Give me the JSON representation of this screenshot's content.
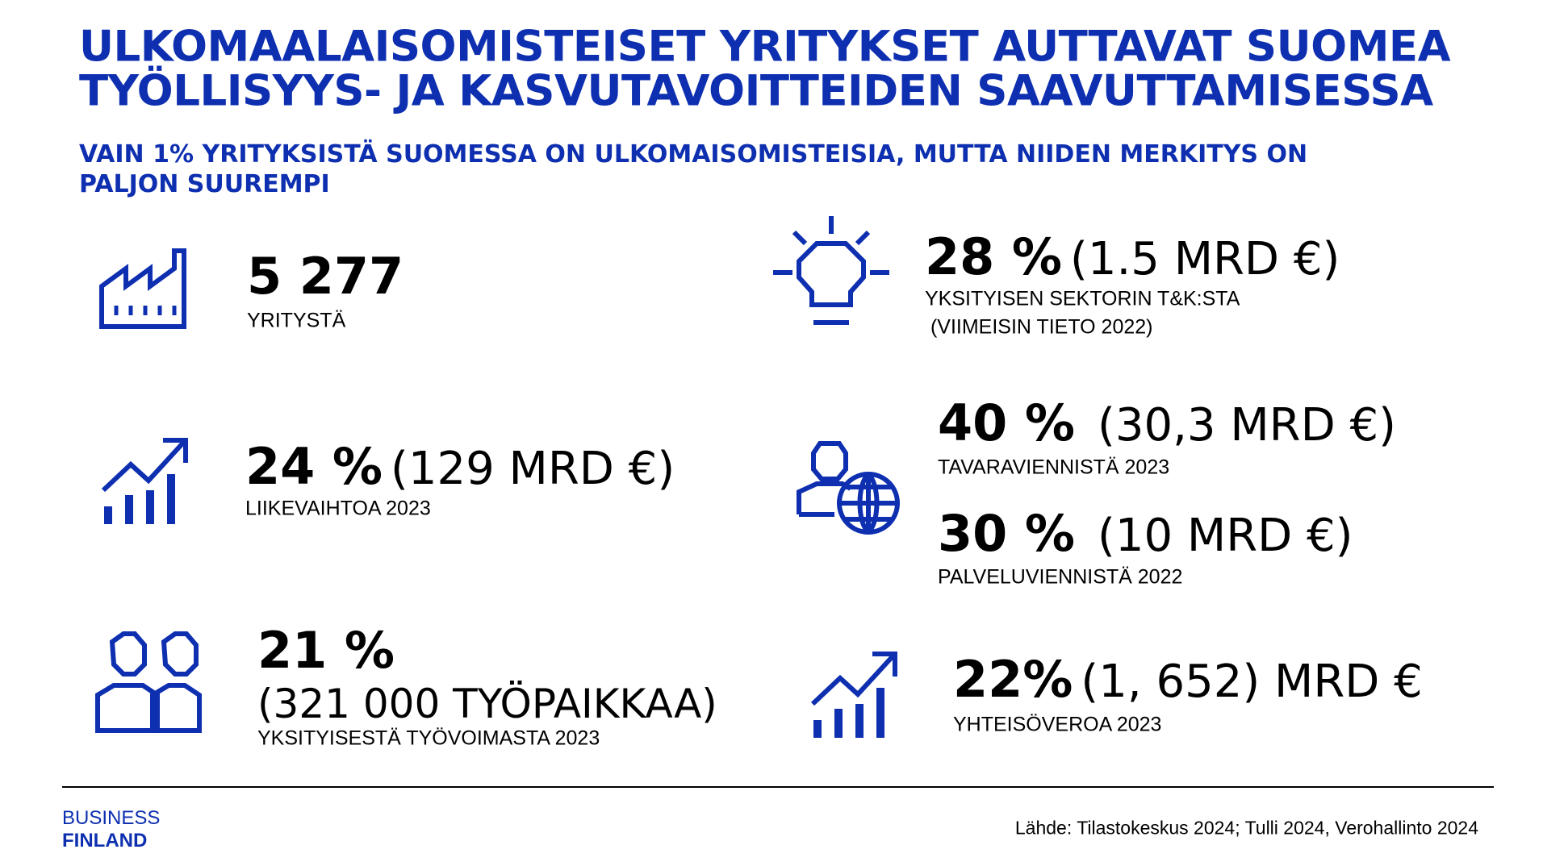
{
  "header": {
    "title": [
      "ULKOMAALAISOMISTEISET YRITYKSET AUTTAVAT SUOMEA",
      "TYÖLLISYYS- JA KASVUTAVOITTEIDEN SAAVUTTAMISESSA"
    ],
    "subtitle": [
      "VAIN 1% YRITYKSISTÄ SUOMESSA ON ULKOMAISOMISTEISIA, MUTTA NIIDEN MERKITYS ON",
      "PALJON SUUREMPI"
    ]
  },
  "stats": [
    {
      "value": "5 277",
      "label": [
        "YRITYSTÄ"
      ]
    },
    {
      "value": "28 %",
      "detail": "(1.5 MRD €)",
      "label": [
        "YKSITYISEN SEKTORIN T&K:STA",
        " (VIIMEISIN TIETO 2022)"
      ]
    },
    {
      "value": "24 %",
      "detail": "(129 MRD €)",
      "label": [
        "LIIKEVAIHTOA 2023"
      ]
    },
    {
      "value": "40 %",
      "detail": "(30,3 MRD €)",
      "label": [
        "TAVARAVIENNISTÄ 2023"
      ]
    },
    {
      "value": "30 %",
      "detail": "(10 MRD €)",
      "label": [
        "PALVELUVIENNISTÄ 2022"
      ]
    },
    {
      "value": "21 %",
      "detail": "(321 000 TYÖPAIKKAA)",
      "label": [
        "YKSITYISESTÄ TYÖVOIMASTA 2023"
      ]
    },
    {
      "value": "22%",
      "detail": "(1, 652) MRD €",
      "label": [
        "YHTEISÖVEROA 2023"
      ]
    }
  ],
  "footer": {
    "logo": [
      "BUSINESS",
      "FINLAND"
    ],
    "source": "Lähde: Tilastokeskus 2024; Tulli 2024, Verohallinto 2024"
  }
}
